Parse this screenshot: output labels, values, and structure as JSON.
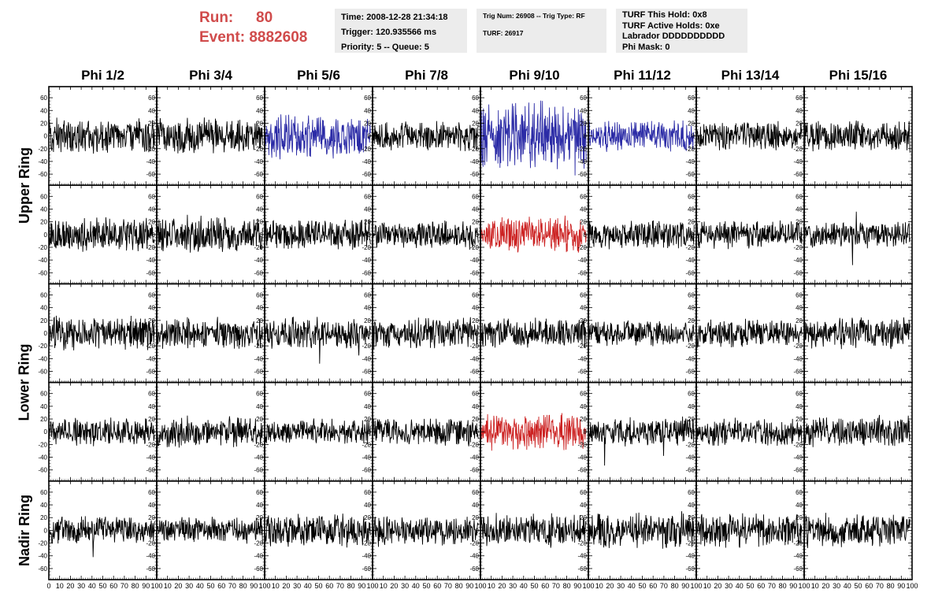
{
  "header": {
    "run_label": "Run:",
    "run_value": "80",
    "event_label": "Event:",
    "event_value": "8882608",
    "info1": [
      "Time: 2008-12-28 21:34:18",
      "Trigger: 120.935566 ms",
      "Priority: 5 -- Queue: 5"
    ],
    "info2": [
      "Trig Num: 26908 -- Trig Type: RF",
      "TURF: 26917"
    ],
    "info3": [
      "TURF This Hold: 0x8",
      "TURF Active Holds: 0xe",
      "Labrador DDDDDDDDDD",
      "Phi Mask: 0"
    ]
  },
  "colors": {
    "header_red": "#d04b4b",
    "info_bg": "#ececec",
    "trace_default": "#000000",
    "trace_blue": "#2b2ba6",
    "trace_red": "#cc2222"
  },
  "chart_data": {
    "type": "line",
    "columns": [
      "Phi 1/2",
      "Phi 3/4",
      "Phi 5/6",
      "Phi 7/8",
      "Phi 9/10",
      "Phi 11/12",
      "Phi 13/14",
      "Phi 15/16"
    ],
    "ring_labels": [
      {
        "label": "Upper Ring",
        "rows": [
          0,
          1
        ]
      },
      {
        "label": "Lower Ring",
        "rows": [
          2,
          3
        ]
      },
      {
        "label": "Nadir Ring",
        "rows": [
          4
        ]
      }
    ],
    "xlim": [
      0,
      100
    ],
    "ylim": [
      -70,
      70
    ],
    "x_ticks": [
      0,
      10,
      20,
      30,
      40,
      50,
      60,
      70,
      80,
      90,
      100
    ],
    "y_ticks": [
      -60,
      -40,
      -20,
      0,
      20,
      40,
      60
    ],
    "n_samples": 256,
    "highlighted_channels": [
      {
        "row": 0,
        "col": 2,
        "color": "blue"
      },
      {
        "row": 0,
        "col": 4,
        "color": "blue"
      },
      {
        "row": 0,
        "col": 5,
        "color": "blue"
      },
      {
        "row": 1,
        "col": 4,
        "color": "red"
      },
      {
        "row": 3,
        "col": 4,
        "color": "red"
      }
    ],
    "trace_amplitudes": [
      [
        14,
        14,
        18,
        11,
        26,
        13,
        11,
        12
      ],
      [
        13,
        15,
        12,
        11,
        14,
        11,
        11,
        10
      ],
      [
        13,
        12,
        12,
        12,
        12,
        10,
        11,
        12
      ],
      [
        11,
        12,
        10,
        11,
        14,
        11,
        11,
        12
      ],
      [
        11,
        10,
        13,
        12,
        13,
        14,
        13,
        13
      ]
    ],
    "peak_samples": [
      [
        {
          "x": 88,
          "y": -62
        },
        {
          "x": 95,
          "y": 27
        }
      ],
      [
        {
          "x": 45,
          "y": -48
        },
        {
          "x": 48,
          "y": 36
        }
      ],
      [
        {
          "x": 51,
          "y": -48
        },
        {
          "x": 87,
          "y": -35
        }
      ],
      [
        {
          "x": 15,
          "y": -53
        },
        {
          "x": 70,
          "y": -38
        }
      ],
      [
        {
          "x": 41,
          "y": -42
        },
        {
          "x": 77,
          "y": -43
        }
      ]
    ]
  }
}
